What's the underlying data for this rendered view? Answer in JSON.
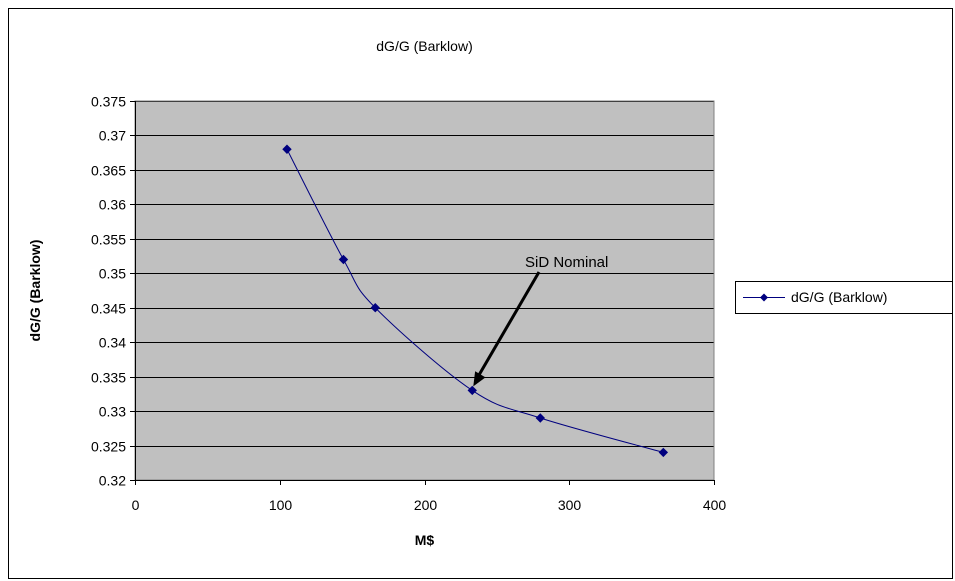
{
  "chart_data": {
    "type": "line",
    "title": "dG/G (Barklow)",
    "xlabel": "M$",
    "ylabel": "dG/G (Barklow)",
    "xlim": [
      0,
      400
    ],
    "ylim": [
      0.32,
      0.375
    ],
    "x_ticks": [
      0,
      100,
      200,
      300,
      400
    ],
    "y_ticks": [
      0.32,
      0.325,
      0.33,
      0.335,
      0.34,
      0.345,
      0.35,
      0.355,
      0.36,
      0.365,
      0.37,
      0.375
    ],
    "x_tick_labels": [
      "0",
      "100",
      "200",
      "300",
      "400"
    ],
    "y_tick_labels": [
      "0.32",
      "0.325",
      "0.33",
      "0.335",
      "0.34",
      "0.345",
      "0.35",
      "0.355",
      "0.36",
      "0.365",
      "0.37",
      "0.375"
    ],
    "grid": true,
    "plot_background": "#c0c0c0",
    "legend_position": "right",
    "series": [
      {
        "name": "dG/G (Barklow)",
        "color": "#00007f",
        "marker": "diamond",
        "x": [
          105,
          144,
          166,
          233,
          280,
          365
        ],
        "y": [
          0.368,
          0.352,
          0.345,
          0.333,
          0.329,
          0.324
        ]
      }
    ],
    "annotations": [
      {
        "text": "SiD Nominal",
        "arrow_to": {
          "x": 233,
          "y": 0.333
        }
      }
    ]
  }
}
